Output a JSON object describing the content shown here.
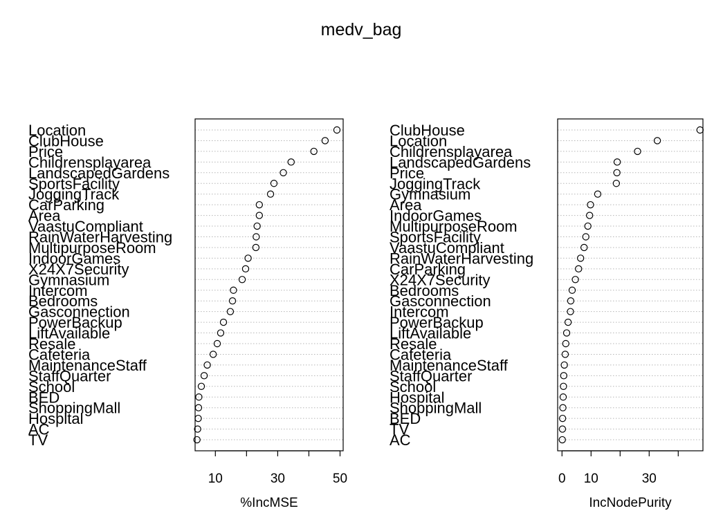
{
  "title": "medv_bag",
  "chart_data": [
    {
      "type": "scatter",
      "xlabel": "%IncMSE",
      "ylabel": "",
      "xlim": [
        3.5,
        51
      ],
      "xticks": [
        10,
        30,
        50
      ],
      "grid": "horizontal-dotted",
      "categories": [
        "Location",
        "ClubHouse",
        "Price",
        "Childrensplayarea",
        "LandscapedGardens",
        "SportsFacility",
        "JoggingTrack",
        "CarParking",
        "Area",
        "VaastuCompliant",
        "RainWaterHarvesting",
        "MultipurposeRoom",
        "IndoorGames",
        "X24X7Security",
        "Gymnasium",
        "Intercom",
        "Bedrooms",
        "Gasconnection",
        "PowerBackup",
        "LiftAvailable",
        "Resale",
        "Cafeteria",
        "MaintenanceStaff",
        "StaffQuarter",
        "School",
        "BED",
        "ShoppingMall",
        "Hospital",
        "AC",
        "TV"
      ],
      "values": [
        49.0,
        45.2,
        41.6,
        34.3,
        31.8,
        28.8,
        27.7,
        24.1,
        24.1,
        23.4,
        23.1,
        23.0,
        20.5,
        19.7,
        18.6,
        15.8,
        15.5,
        14.8,
        12.6,
        11.7,
        10.6,
        9.3,
        7.4,
        6.4,
        5.5,
        4.7,
        4.6,
        4.5,
        4.3,
        4.1
      ]
    },
    {
      "type": "scatter",
      "xlabel": "IncNodePurity",
      "ylabel": "",
      "xlim": [
        -1.5,
        48.5
      ],
      "xticks": [
        0,
        10,
        30
      ],
      "grid": "horizontal-dotted",
      "categories": [
        "ClubHouse",
        "Location",
        "Childrensplayarea",
        "LandscapedGardens",
        "Price",
        "JoggingTrack",
        "Gymnasium",
        "Area",
        "IndoorGames",
        "MultipurposeRoom",
        "SportsFacility",
        "VaastuCompliant",
        "RainWaterHarvesting",
        "CarParking",
        "X24X7Security",
        "Bedrooms",
        "Gasconnection",
        "Intercom",
        "PowerBackup",
        "LiftAvailable",
        "Resale",
        "Cafeteria",
        "MaintenanceStaff",
        "StaffQuarter",
        "School",
        "Hospital",
        "ShoppingMall",
        "BED",
        "TV",
        "AC"
      ],
      "values": [
        47.5,
        32.8,
        26.0,
        19.0,
        18.9,
        18.7,
        12.3,
        9.8,
        9.5,
        8.9,
        8.2,
        7.6,
        6.4,
        5.7,
        4.6,
        3.5,
        3.0,
        2.9,
        2.1,
        1.6,
        1.3,
        1.1,
        0.8,
        0.6,
        0.5,
        0.4,
        0.3,
        0.2,
        0.15,
        0.1
      ]
    }
  ]
}
